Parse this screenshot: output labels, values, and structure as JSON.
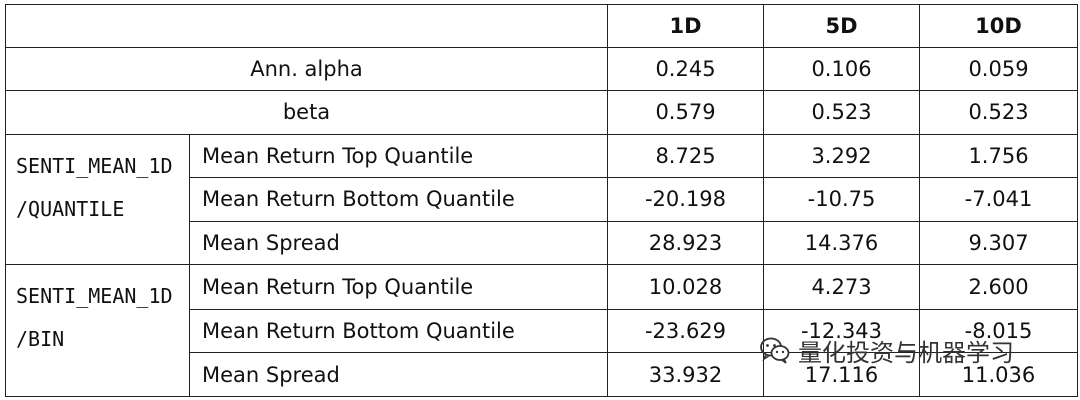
{
  "table": {
    "header": [
      "",
      "1D",
      "5D",
      "10D"
    ],
    "summary_rows": [
      {
        "label": "Ann. alpha",
        "values": [
          "0.245",
          "0.106",
          "0.059"
        ]
      },
      {
        "label": "beta",
        "values": [
          "0.579",
          "0.523",
          "0.523"
        ]
      }
    ],
    "groups": [
      {
        "name_lines": [
          "SENTI_MEAN_1D",
          "/QUANTILE"
        ],
        "rows": [
          {
            "label": "Mean Return Top Quantile",
            "values": [
              "8.725",
              "3.292",
              "1.756"
            ]
          },
          {
            "label": "Mean Return Bottom Quantile",
            "values": [
              "-20.198",
              "-10.75",
              "-7.041"
            ]
          },
          {
            "label": "Mean Spread",
            "values": [
              "28.923",
              "14.376",
              "9.307"
            ]
          }
        ]
      },
      {
        "name_lines": [
          "SENTI_MEAN_1D",
          "/BIN"
        ],
        "rows": [
          {
            "label": "Mean Return Top Quantile",
            "values": [
              "10.028",
              "4.273",
              "2.600"
            ]
          },
          {
            "label": "Mean Return Bottom Quantile",
            "values": [
              "-23.629",
              "-12.343",
              "-8.015"
            ]
          },
          {
            "label": "Mean Spread",
            "values": [
              "33.932",
              "17.116",
              "11.036"
            ]
          }
        ]
      }
    ]
  },
  "watermark": {
    "text": "量化投资与机器学习",
    "icon": "wechat-logo-icon"
  }
}
